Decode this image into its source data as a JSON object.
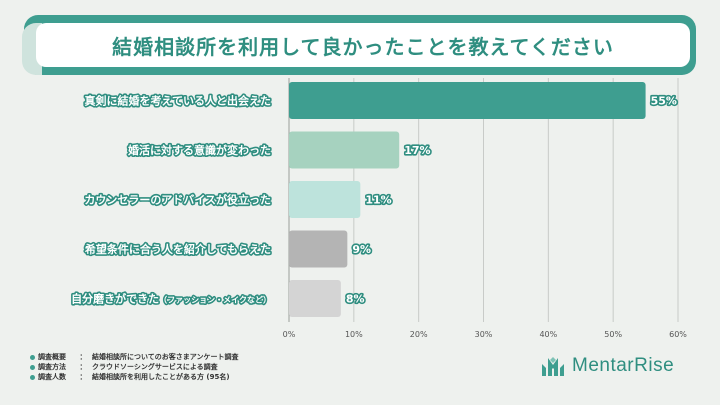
{
  "title": "結婚相談所を利用して良かったことを教えてください",
  "chart_data": {
    "type": "bar",
    "orientation": "horizontal",
    "title": "結婚相談所を利用して良かったことを教えてください",
    "categories": [
      "真剣に結婚を考えている人と出会えた",
      "婚活に対する意識が変わった",
      "カウンセラーのアドバイスが役立った",
      "希望条件に合う人を紹介してもらえた",
      "自分磨きができた"
    ],
    "category_suffix": [
      "",
      "",
      "",
      "",
      "（ファッション・メイクなど）"
    ],
    "values": [
      55,
      17,
      11,
      9,
      8
    ],
    "value_labels": [
      "55%",
      "17%",
      "11%",
      "9%",
      "8%"
    ],
    "colors": [
      "#3e9e90",
      "#a6d2bf",
      "#bde3dc",
      "#b4b4b4",
      "#d4d4d4"
    ],
    "xlim": [
      0,
      60
    ],
    "ticks": [
      0,
      10,
      20,
      30,
      40,
      50,
      60
    ],
    "tick_labels": [
      "0%",
      "10%",
      "20%",
      "30%",
      "40%",
      "50%",
      "60%"
    ],
    "xlabel": "",
    "ylabel": "",
    "grid": true
  },
  "notes": [
    {
      "key": "調査概要",
      "sep": "：",
      "value": "結婚相談所についてのお客さまアンケート調査"
    },
    {
      "key": "調査方法",
      "sep": "：",
      "value": "クラウドソーシングサービスによる調査"
    },
    {
      "key": "調査人数",
      "sep": "：",
      "value": "結婚相談所を利用したことがある方 (95名)"
    }
  ],
  "logo": {
    "text": "MentarRise",
    "icon": "mentarrise-logo-icon"
  },
  "colors": {
    "accent": "#3e9e90",
    "background": "#eef1ee"
  }
}
